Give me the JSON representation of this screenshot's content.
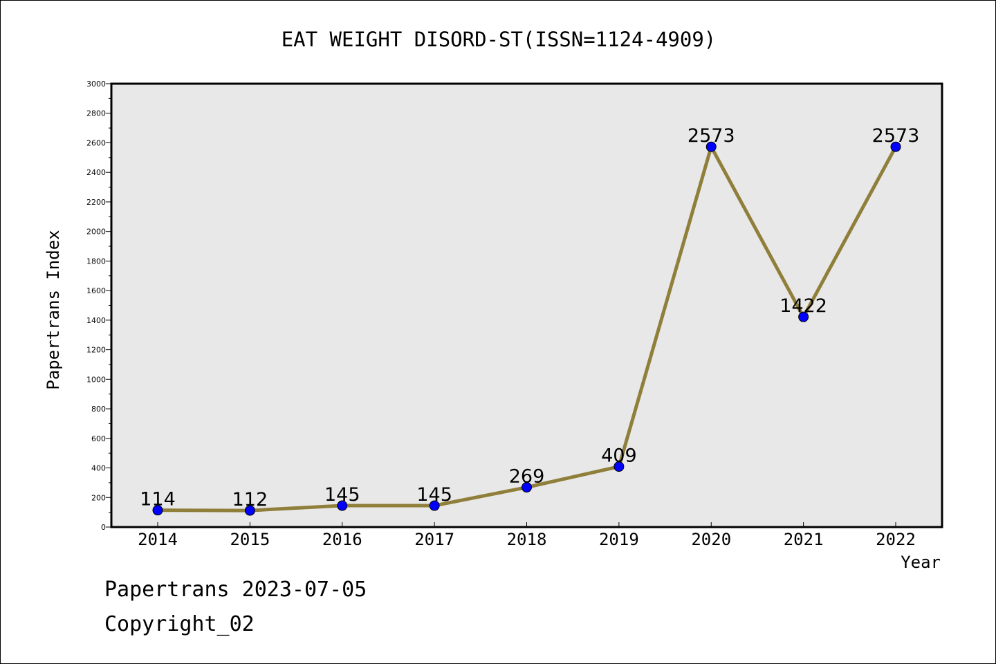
{
  "chart_data": {
    "type": "line",
    "title": "EAT WEIGHT DISORD-ST(ISSN=1124-4909)",
    "xlabel": "Year",
    "ylabel": "Papertrans Index",
    "categories": [
      "2014",
      "2015",
      "2016",
      "2017",
      "2018",
      "2019",
      "2020",
      "2021",
      "2022"
    ],
    "series": [
      {
        "values": [
          114,
          112,
          145,
          145,
          269,
          409,
          2573,
          1422,
          2573
        ],
        "line_color": "#8f7f3a",
        "marker_color": "#0000ff"
      }
    ],
    "data_labels": [
      "114",
      "112",
      "145",
      "145",
      "269",
      "409",
      "2573",
      "1422",
      "2573"
    ],
    "ylim": [
      0,
      3000
    ],
    "yticks": [
      "0",
      "200",
      "400",
      "600",
      "800",
      "1000",
      "1200",
      "1400",
      "1600",
      "1800",
      "2000",
      "2200",
      "2400",
      "2600",
      "2800",
      "3000"
    ],
    "grid": false,
    "plot_background": "#e8e8e8"
  },
  "footer": {
    "line1": "Papertrans 2023-07-05",
    "line2": "Copyright_02"
  }
}
